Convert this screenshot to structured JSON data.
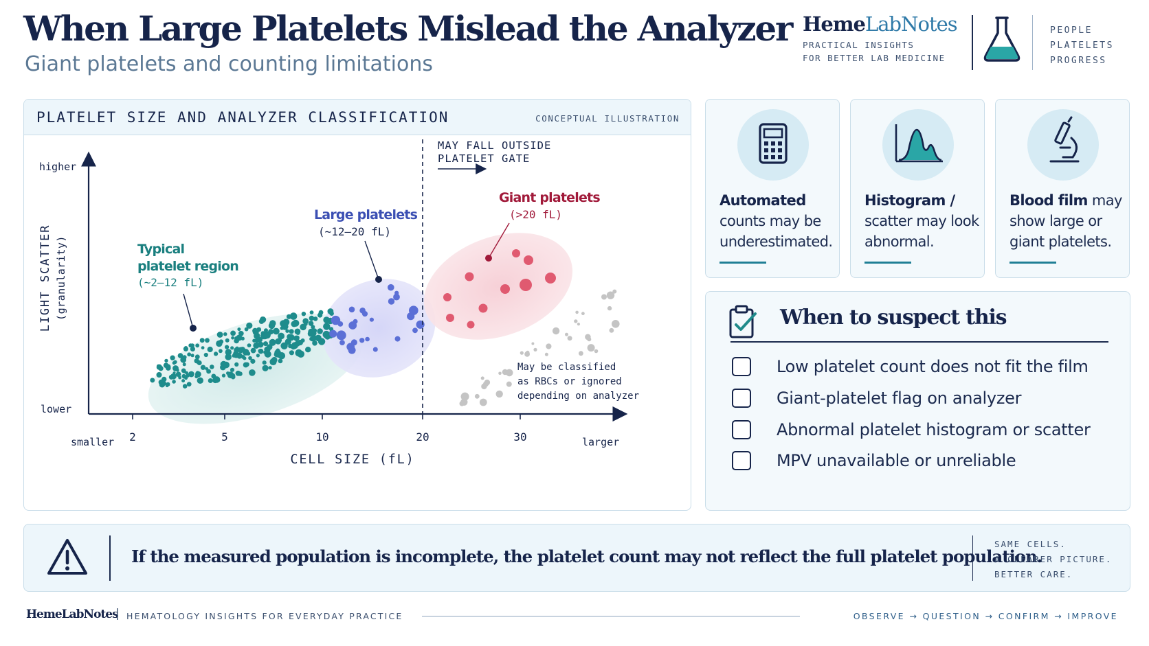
{
  "header": {
    "title": "When Large Platelets Mislead the Analyzer",
    "subtitle": "Giant platelets and counting limitations"
  },
  "brand": {
    "name_part1": "Heme",
    "name_part2": "LabNotes",
    "tagline_line1": "PRACTICAL INSIGHTS",
    "tagline_line2": "FOR BETTER LAB MEDICINE",
    "words": [
      "PEOPLE",
      "PLATELETS",
      "PROGRESS"
    ],
    "icon": "flask-icon"
  },
  "chart_panel": {
    "heading": "PLATELET SIZE AND ANALYZER CLASSIFICATION",
    "note": "CONCEPTUAL ILLUSTRATION"
  },
  "chart_data": {
    "type": "scatter",
    "title": "PLATELET SIZE AND ANALYZER CLASSIFICATION",
    "xlabel": "CELL SIZE (fL)",
    "ylabel": "LIGHT SCATTER",
    "ylabel_sub": "(granularity)",
    "x_ticks": [
      2,
      5,
      10,
      20,
      30
    ],
    "x_min_label": "smaller",
    "x_max_label": "larger",
    "y_min_label": "lower",
    "y_max_label": "higher",
    "gate": {
      "x": 20,
      "label_line1": "MAY FALL OUTSIDE",
      "label_line2": "PLATELET GATE"
    },
    "regions": [
      {
        "name_line1": "Typical",
        "name_line2": "platelet region",
        "range": "(~2–12 fL)",
        "color": "#1e8c8c",
        "fill": "#d8eeee"
      },
      {
        "name_line1": "Large platelets",
        "range": "(~12–20 fL)",
        "color": "#5b6fd6",
        "fill": "#dcdcf8"
      },
      {
        "name_line1": "Giant platelets",
        "range": "(>20 fL)",
        "color": "#e05a70",
        "fill": "#f8d9de",
        "label_color": "#a11a3a"
      }
    ],
    "outside_note": [
      "May be classified",
      "as RBCs or ignored",
      "depending on analyzer"
    ],
    "outside_color": "#c4c4c4"
  },
  "cards": [
    {
      "bold": "Automated",
      "text": "counts may be underestimated.",
      "icon": "calculator-icon"
    },
    {
      "bold": "Histogram /",
      "text": "scatter may look abnormal.",
      "icon": "histogram-icon"
    },
    {
      "bold": "Blood film",
      "text": "may show large or giant platelets.",
      "icon": "microscope-icon"
    }
  ],
  "suspect": {
    "title": "When to suspect this",
    "icon": "clipboard-check-icon",
    "items": [
      "Low platelet count does not fit the film",
      "Giant-platelet flag on analyzer",
      "Abnormal platelet histogram or scatter",
      "MPV unavailable or unreliable"
    ]
  },
  "banner": {
    "icon": "warning-icon",
    "text": "If the measured population is incomplete, the platelet count may not reflect the full platelet population.",
    "tag": [
      "SAME CELLS.",
      "A CLEARER PICTURE.",
      "BETTER CARE."
    ]
  },
  "footer": {
    "brand": "HemeLabNotes",
    "separator": "|",
    "tagline": "HEMATOLOGY INSIGHTS FOR EVERYDAY PRACTICE",
    "steps": "OBSERVE → QUESTION → CONFIRM → IMPROVE"
  },
  "colors": {
    "navy": "#16244a",
    "teal": "#1e8c8c",
    "indigo": "#5b6fd6",
    "rose": "#e05a70",
    "panel_tint": "#edf6fb"
  }
}
